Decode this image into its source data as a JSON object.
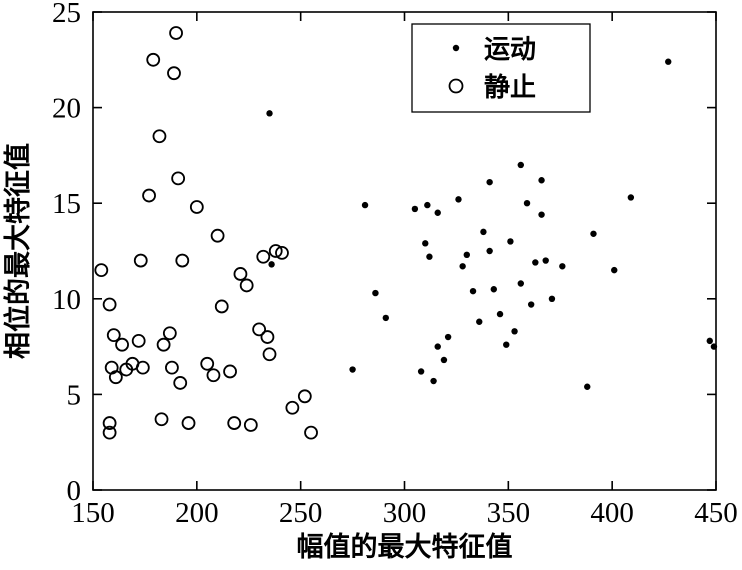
{
  "figure": {
    "title": "",
    "background": "#ffffff",
    "stroke_color": "#000000"
  },
  "chart_data": {
    "type": "scatter",
    "title": "",
    "xlabel": "幅值的最大特征值",
    "ylabel": "相位的最大特征值",
    "xlim": [
      150,
      450
    ],
    "ylim": [
      0,
      25
    ],
    "xticks": [
      150,
      200,
      250,
      300,
      350,
      400,
      450
    ],
    "yticks": [
      0,
      5,
      10,
      15,
      20,
      25
    ],
    "grid": false,
    "legend_position": "top-right-inside",
    "series": [
      {
        "name": "运动",
        "marker": "dot",
        "points": [
          [
            235,
            19.7
          ],
          [
            236,
            11.8
          ],
          [
            275,
            6.3
          ],
          [
            281,
            14.9
          ],
          [
            286,
            10.3
          ],
          [
            291,
            9.0
          ],
          [
            305,
            14.7
          ],
          [
            308,
            6.2
          ],
          [
            311,
            14.9
          ],
          [
            310,
            12.9
          ],
          [
            312,
            12.2
          ],
          [
            314,
            5.7
          ],
          [
            316,
            14.5
          ],
          [
            316,
            7.5
          ],
          [
            319,
            6.8
          ],
          [
            321,
            8.0
          ],
          [
            326,
            15.2
          ],
          [
            328,
            11.7
          ],
          [
            330,
            12.3
          ],
          [
            333,
            10.4
          ],
          [
            336,
            8.8
          ],
          [
            338,
            13.5
          ],
          [
            341,
            16.1
          ],
          [
            341,
            12.5
          ],
          [
            343,
            10.5
          ],
          [
            346,
            9.2
          ],
          [
            349,
            7.6
          ],
          [
            351,
            13.0
          ],
          [
            353,
            8.3
          ],
          [
            356,
            17.0
          ],
          [
            356,
            10.8
          ],
          [
            359,
            15.0
          ],
          [
            361,
            9.7
          ],
          [
            363,
            11.9
          ],
          [
            366,
            16.2
          ],
          [
            366,
            14.4
          ],
          [
            368,
            12.0
          ],
          [
            371,
            10.0
          ],
          [
            376,
            11.7
          ],
          [
            388,
            5.4
          ],
          [
            391,
            13.4
          ],
          [
            401,
            11.5
          ],
          [
            409,
            15.3
          ],
          [
            427,
            22.4
          ],
          [
            447,
            7.8
          ],
          [
            449,
            7.5
          ]
        ]
      },
      {
        "name": "静止",
        "marker": "open-circle",
        "points": [
          [
            154,
            11.5
          ],
          [
            158,
            9.7
          ],
          [
            160,
            8.1
          ],
          [
            159,
            6.4
          ],
          [
            161,
            5.9
          ],
          [
            158,
            3.5
          ],
          [
            158,
            3.0
          ],
          [
            164,
            7.6
          ],
          [
            166,
            6.3
          ],
          [
            169,
            6.6
          ],
          [
            172,
            7.8
          ],
          [
            174,
            6.4
          ],
          [
            173,
            12.0
          ],
          [
            177,
            15.4
          ],
          [
            179,
            22.5
          ],
          [
            182,
            18.5
          ],
          [
            183,
            3.7
          ],
          [
            184,
            7.6
          ],
          [
            187,
            8.2
          ],
          [
            188,
            6.4
          ],
          [
            190,
            23.9
          ],
          [
            189,
            21.8
          ],
          [
            191,
            16.3
          ],
          [
            193,
            12.0
          ],
          [
            192,
            5.6
          ],
          [
            196,
            3.5
          ],
          [
            200,
            14.8
          ],
          [
            205,
            6.6
          ],
          [
            208,
            6.0
          ],
          [
            210,
            13.3
          ],
          [
            212,
            9.6
          ],
          [
            216,
            6.2
          ],
          [
            218,
            3.5
          ],
          [
            221,
            11.3
          ],
          [
            224,
            10.7
          ],
          [
            226,
            3.4
          ],
          [
            230,
            8.4
          ],
          [
            232,
            12.2
          ],
          [
            234,
            8.0
          ],
          [
            235,
            7.1
          ],
          [
            238,
            12.5
          ],
          [
            241,
            12.4
          ],
          [
            246,
            4.3
          ],
          [
            252,
            4.9
          ],
          [
            255,
            3.0
          ]
        ]
      }
    ]
  }
}
